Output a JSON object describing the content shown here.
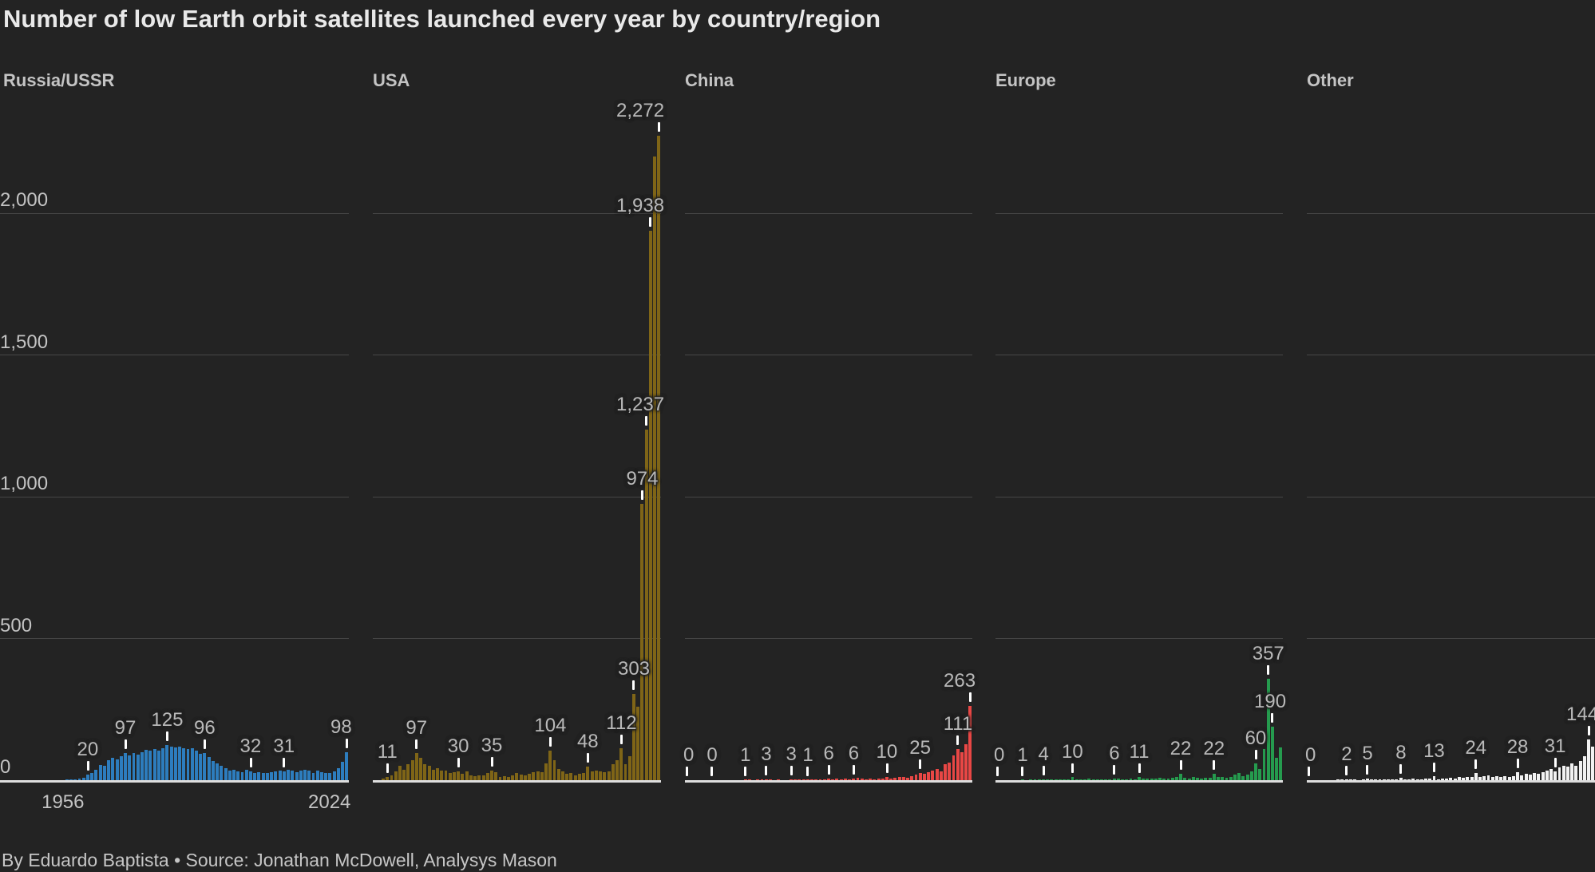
{
  "title": "Number of low Earth orbit satellites launched every year by country/region",
  "footer": "By Eduardo Baptista • Source: Jonathan McDowell, Analysys Mason",
  "background_color": "#232323",
  "chart_data": {
    "type": "bar",
    "layout": "small-multiples",
    "title": "Number of low Earth orbit satellites launched every year by country/region",
    "grid": "horizontal-gridlines-on",
    "year_start": 1956,
    "year_end": 2024,
    "ylim": [
      0,
      2300
    ],
    "y_axis": {
      "ticks": [
        {
          "value": 0,
          "label": "0"
        },
        {
          "value": 500,
          "label": "500"
        },
        {
          "value": 1000,
          "label": "1,000"
        },
        {
          "value": 1500,
          "label": "1,500"
        },
        {
          "value": 2000,
          "label": "2,000"
        }
      ]
    },
    "x_axis": {
      "labels": [
        {
          "year": 1956,
          "label": "1956"
        },
        {
          "year": 2024,
          "label": "2024"
        }
      ]
    },
    "series": [
      {
        "name": "Russia/USSR",
        "color": "#2d7dbe",
        "values": [
          0,
          2,
          1,
          2,
          5,
          9,
          20,
          24,
          38,
          53,
          50,
          70,
          78,
          72,
          84,
          97,
          88,
          95,
          90,
          100,
          108,
          103,
          110,
          105,
          112,
          125,
          118,
          116,
          119,
          114,
          110,
          112,
          105,
          92,
          96,
          82,
          68,
          58,
          52,
          42,
          33,
          38,
          32,
          28,
          36,
          32,
          26,
          28,
          24,
          26,
          28,
          30,
          33,
          31,
          36,
          33,
          28,
          33,
          38,
          33,
          24,
          33,
          28,
          25,
          26,
          30,
          42,
          65,
          98
        ],
        "annotations": [
          {
            "year": 1962,
            "label": "20"
          },
          {
            "year": 1971,
            "label": "97"
          },
          {
            "year": 1981,
            "label": "125"
          },
          {
            "year": 1990,
            "label": "96"
          },
          {
            "year": 2001,
            "label": "32"
          },
          {
            "year": 2009,
            "label": "31"
          },
          {
            "year": 2024,
            "label": "98"
          }
        ]
      },
      {
        "name": "USA",
        "color": "#7f6517",
        "values": [
          0,
          0,
          5,
          11,
          16,
          30,
          50,
          38,
          55,
          70,
          97,
          80,
          55,
          50,
          36,
          42,
          33,
          35,
          26,
          28,
          30,
          22,
          30,
          16,
          14,
          18,
          16,
          26,
          35,
          28,
          12,
          14,
          12,
          16,
          24,
          20,
          18,
          22,
          28,
          32,
          28,
          60,
          104,
          70,
          40,
          30,
          22,
          26,
          18,
          22,
          26,
          48,
          30,
          35,
          30,
          28,
          32,
          55,
          70,
          112,
          55,
          85,
          303,
          260,
          974,
          1237,
          1938,
          2200,
          2272
        ],
        "annotations": [
          {
            "year": 1959,
            "label": "11"
          },
          {
            "year": 1966,
            "label": "97"
          },
          {
            "year": 1976,
            "label": "30"
          },
          {
            "year": 1984,
            "label": "35"
          },
          {
            "year": 1998,
            "label": "104"
          },
          {
            "year": 2007,
            "label": "48"
          },
          {
            "year": 2015,
            "label": "112"
          },
          {
            "year": 2018,
            "label": "303"
          },
          {
            "year": 2020,
            "label": "974"
          },
          {
            "year": 2021,
            "label": "1,237"
          },
          {
            "year": 2022,
            "label": "1,938"
          },
          {
            "year": 2024,
            "label": "2,272"
          }
        ]
      },
      {
        "name": "China",
        "color": "#e84745",
        "values": [
          0,
          0,
          0,
          0,
          0,
          0,
          0,
          0,
          0,
          0,
          0,
          0,
          0,
          0,
          1,
          2,
          0,
          1,
          1,
          3,
          2,
          0,
          1,
          0,
          0,
          3,
          1,
          1,
          3,
          1,
          2,
          2,
          4,
          1,
          6,
          2,
          5,
          4,
          5,
          3,
          6,
          8,
          6,
          4,
          5,
          3,
          5,
          7,
          10,
          6,
          8,
          10,
          12,
          8,
          15,
          20,
          25,
          22,
          28,
          35,
          40,
          32,
          55,
          62,
          88,
          111,
          98,
          128,
          263
        ],
        "annotations": [
          {
            "year": 1956,
            "label": "0"
          },
          {
            "year": 1962,
            "label": "0"
          },
          {
            "year": 1970,
            "label": "1"
          },
          {
            "year": 1975,
            "label": "3"
          },
          {
            "year": 1981,
            "label": "3"
          },
          {
            "year": 1985,
            "label": "1"
          },
          {
            "year": 1990,
            "label": "6"
          },
          {
            "year": 1996,
            "label": "6"
          },
          {
            "year": 2004,
            "label": "10"
          },
          {
            "year": 2012,
            "label": "25"
          },
          {
            "year": 2021,
            "label": "111"
          },
          {
            "year": 2024,
            "label": "263"
          }
        ]
      },
      {
        "name": "Europe",
        "color": "#259b4e",
        "values": [
          0,
          0,
          0,
          0,
          0,
          0,
          1,
          0,
          1,
          2,
          1,
          4,
          2,
          2,
          2,
          3,
          2,
          1,
          10,
          4,
          2,
          3,
          5,
          2,
          1,
          4,
          2,
          3,
          6,
          5,
          4,
          3,
          5,
          4,
          11,
          6,
          5,
          6,
          7,
          8,
          6,
          7,
          9,
          10,
          22,
          8,
          7,
          10,
          8,
          7,
          9,
          8,
          22,
          12,
          10,
          8,
          12,
          20,
          25,
          15,
          20,
          30,
          60,
          40,
          110,
          357,
          190,
          80,
          115
        ],
        "annotations": [
          {
            "year": 1956,
            "label": "0"
          },
          {
            "year": 1962,
            "label": "1"
          },
          {
            "year": 1967,
            "label": "4"
          },
          {
            "year": 1974,
            "label": "10"
          },
          {
            "year": 1984,
            "label": "6"
          },
          {
            "year": 1990,
            "label": "11"
          },
          {
            "year": 2000,
            "label": "22"
          },
          {
            "year": 2008,
            "label": "22"
          },
          {
            "year": 2018,
            "label": "60"
          },
          {
            "year": 2021,
            "label": "357"
          },
          {
            "year": 2022,
            "label": "190"
          }
        ]
      },
      {
        "name": "Other",
        "color": "#f2f2f2",
        "values": [
          0,
          0,
          0,
          0,
          0,
          0,
          0,
          1,
          1,
          2,
          1,
          1,
          0,
          1,
          5,
          3,
          2,
          1,
          2,
          4,
          3,
          2,
          8,
          2,
          3,
          5,
          2,
          4,
          6,
          5,
          13,
          4,
          5,
          6,
          8,
          7,
          10,
          8,
          12,
          10,
          24,
          12,
          15,
          18,
          12,
          15,
          10,
          14,
          12,
          15,
          28,
          18,
          22,
          20,
          25,
          22,
          28,
          35,
          40,
          31,
          45,
          52,
          48,
          58,
          52,
          68,
          84,
          144,
          118
        ],
        "annotations": [
          {
            "year": 1956,
            "label": "0"
          },
          {
            "year": 1965,
            "label": "2"
          },
          {
            "year": 1970,
            "label": "5"
          },
          {
            "year": 1978,
            "label": "8"
          },
          {
            "year": 1986,
            "label": "13"
          },
          {
            "year": 1996,
            "label": "24"
          },
          {
            "year": 2006,
            "label": "28"
          },
          {
            "year": 2015,
            "label": "31"
          },
          {
            "year": 2023,
            "label": "144"
          }
        ]
      }
    ]
  }
}
